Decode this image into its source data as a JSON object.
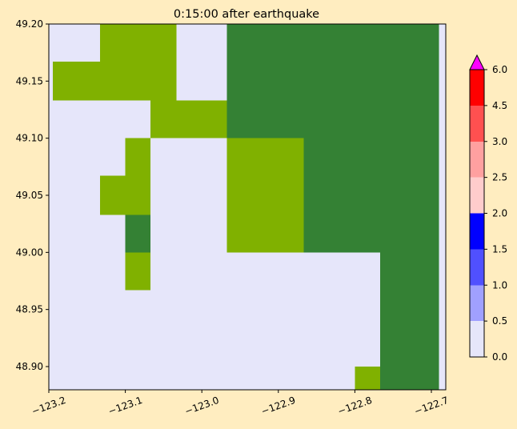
{
  "background_color": "#FFEDC0",
  "chart_data": [
    {
      "type": "heatmap",
      "title": "0:15:00 after earthquake",
      "xlabel": "",
      "ylabel": "",
      "x_ticks": [
        {
          "value": -123.2,
          "label": "−123.2"
        },
        {
          "value": -123.1,
          "label": "−123.1"
        },
        {
          "value": -123.0,
          "label": "−123.0"
        },
        {
          "value": -122.9,
          "label": "−122.9"
        },
        {
          "value": -122.8,
          "label": "−122.8"
        },
        {
          "value": -122.7,
          "label": "−122.7"
        }
      ],
      "y_ticks": [
        {
          "value": 48.9,
          "label": "48.90"
        },
        {
          "value": 48.95,
          "label": "48.95"
        },
        {
          "value": 49.0,
          "label": "49.00"
        },
        {
          "value": 49.05,
          "label": "49.05"
        },
        {
          "value": 49.1,
          "label": "49.10"
        },
        {
          "value": 49.15,
          "label": "49.15"
        },
        {
          "value": 49.2,
          "label": "49.20"
        }
      ],
      "xlim": [
        -123.2,
        -122.69
      ],
      "ylim": [
        48.88,
        49.2
      ],
      "grid": false,
      "background_fill": "#E6E6FA",
      "cell_types": {
        "land_light": "#80B100",
        "land_dark": "#348134"
      },
      "cells": [
        {
          "type": "land_light",
          "x0": -123.133,
          "x1": -123.033,
          "y0": 49.167,
          "y1": 49.2
        },
        {
          "type": "land_dark",
          "x0": -122.967,
          "x1": -122.69,
          "y0": 49.133,
          "y1": 49.2
        },
        {
          "type": "land_light",
          "x0": -123.195,
          "x1": -123.033,
          "y0": 49.133,
          "y1": 49.167
        },
        {
          "type": "land_light",
          "x0": -123.067,
          "x1": -122.967,
          "y0": 49.1,
          "y1": 49.133
        },
        {
          "type": "land_dark",
          "x0": -122.967,
          "x1": -122.69,
          "y0": 49.1,
          "y1": 49.133
        },
        {
          "type": "land_light",
          "x0": -123.1,
          "x1": -123.067,
          "y0": 49.067,
          "y1": 49.1
        },
        {
          "type": "land_light",
          "x0": -122.967,
          "x1": -122.867,
          "y0": 49.0,
          "y1": 49.1
        },
        {
          "type": "land_dark",
          "x0": -122.867,
          "x1": -122.69,
          "y0": 49.0,
          "y1": 49.1
        },
        {
          "type": "land_light",
          "x0": -123.133,
          "x1": -123.067,
          "y0": 49.033,
          "y1": 49.067
        },
        {
          "type": "land_dark",
          "x0": -123.1,
          "x1": -123.067,
          "y0": 49.0,
          "y1": 49.033
        },
        {
          "type": "land_light",
          "x0": -123.1,
          "x1": -123.067,
          "y0": 48.967,
          "y1": 49.0
        },
        {
          "type": "land_dark",
          "x0": -122.767,
          "x1": -122.69,
          "y0": 48.88,
          "y1": 49.0
        },
        {
          "type": "land_light",
          "x0": -122.8,
          "x1": -122.767,
          "y0": 48.88,
          "y1": 48.9
        }
      ]
    },
    {
      "type": "colorbar",
      "levels": [
        {
          "from": 0.0,
          "to": 0.5,
          "color": "#E6E6FA"
        },
        {
          "from": 0.5,
          "to": 1.0,
          "color": "#A0A0FF"
        },
        {
          "from": 1.0,
          "to": 1.5,
          "color": "#5050FF"
        },
        {
          "from": 1.5,
          "to": 2.0,
          "color": "#0000FF"
        },
        {
          "from": 2.0,
          "to": 2.5,
          "color": "#FFCCCC"
        },
        {
          "from": 2.5,
          "to": 3.0,
          "color": "#FFA0A0"
        },
        {
          "from": 3.0,
          "to": 4.5,
          "color": "#FF5050"
        },
        {
          "from": 4.5,
          "to": 6.0,
          "color": "#FF0000"
        }
      ],
      "extend_max_color": "#FF00FF",
      "range": [
        0,
        6
      ],
      "tick_labels": [
        "0.0",
        "0.5",
        "1.0",
        "1.5",
        "2.0",
        "2.5",
        "3.0",
        "4.5",
        "6.0"
      ]
    }
  ]
}
